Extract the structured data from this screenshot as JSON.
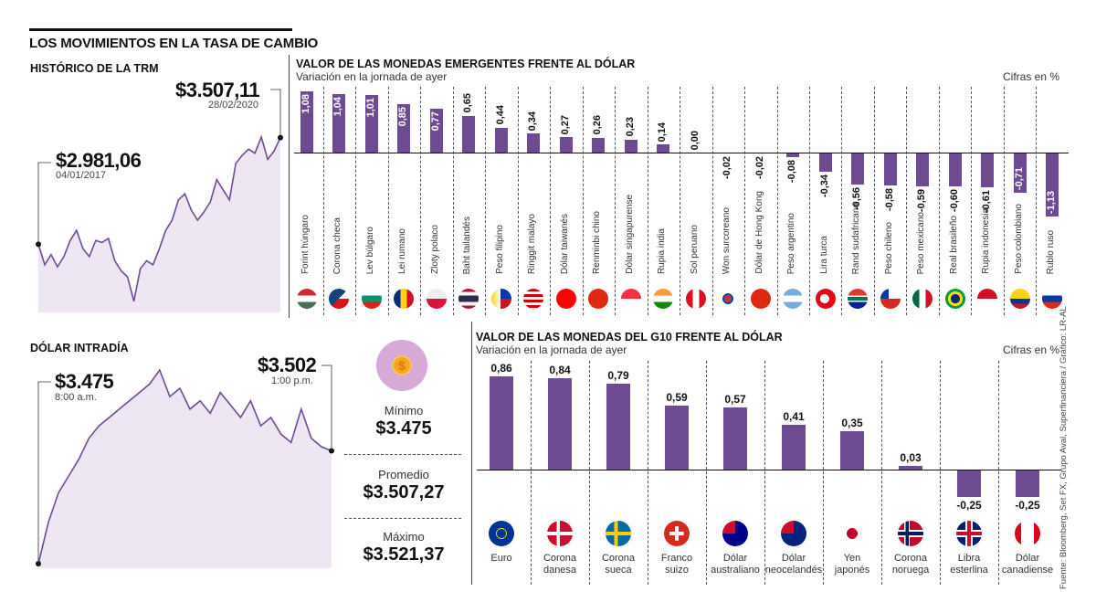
{
  "header": {
    "title": "LOS MOVIMIENTOS EN LA TASA DE CAMBIO"
  },
  "trm": {
    "title": "HISTÓRICO DE LA TRM",
    "start_value": "$2.981,06",
    "start_date": "04/01/2017",
    "end_value": "$3.507,11",
    "end_date": "28/02/2020"
  },
  "intraday": {
    "title": "DÓLAR INTRADÍA",
    "open_value": "$3.475",
    "open_time": "8:00 a.m.",
    "close_value": "$3.502",
    "close_time": "1:00 p.m.",
    "min_label": "Mínimo",
    "min_value": "$3.475",
    "avg_label": "Promedio",
    "avg_value": "$3.507,27",
    "max_label": "Máximo",
    "max_value": "$3.521,37",
    "icon": "dollar-coin-icon"
  },
  "emerging": {
    "title": "VALOR DE LAS MONEDAS EMERGENTES FRENTE AL DÓLAR",
    "subtitle": "Variación en la jornada de ayer",
    "unit": "Cifras en %"
  },
  "g10": {
    "title": "VALOR DE LAS MONEDAS DEL  G10 FRENTE AL DÓLAR",
    "subtitle": "Variación en la jornada de ayer",
    "unit": "Cifras en %"
  },
  "source": "Fuente: Bloomberg, Set FX, Grupo Aval, Superfinanciera / Gráfico: LR-AL",
  "colors": {
    "bar": "#6e4a92",
    "line": "#6e4a92",
    "fill": "#efe6f3"
  },
  "chart_data": [
    {
      "type": "area",
      "title": "HISTÓRICO DE LA TRM",
      "x_start": "04/01/2017",
      "x_end": "28/02/2020",
      "values": [
        2981,
        2880,
        2930,
        2870,
        2920,
        3000,
        3050,
        2960,
        2920,
        3000,
        2990,
        3010,
        2900,
        2850,
        2820,
        2700,
        2860,
        2900,
        2880,
        2960,
        3050,
        3100,
        3200,
        3230,
        3150,
        3100,
        3140,
        3190,
        3300,
        3250,
        3200,
        3380,
        3420,
        3450,
        3430,
        3510,
        3400,
        3440,
        3507.11
      ]
    },
    {
      "type": "area",
      "title": "DÓLAR INTRADÍA",
      "x_start": "8:00 a.m.",
      "x_end": "1:00 p.m.",
      "values": [
        3475,
        3485,
        3492,
        3496,
        3500,
        3505,
        3508,
        3510,
        3512,
        3514,
        3516,
        3518,
        3521.37,
        3515,
        3517,
        3512,
        3514,
        3511,
        3516,
        3513,
        3510,
        3514,
        3508,
        3510,
        3506,
        3504,
        3512,
        3505,
        3503,
        3502
      ]
    },
    {
      "type": "bar",
      "title": "VALOR DE LAS MONEDAS EMERGENTES FRENTE AL DÓLAR",
      "ylabel": "Cifras en %",
      "categories": [
        "Forint húngaro",
        "Corona checa",
        "Lev búlgaro",
        "Lei rumano",
        "Zloty polaco",
        "Baht tailandés",
        "Peso filipino",
        "Ringgit malayo",
        "Dólar taiwanés",
        "Renminbi chino",
        "Dólar singapurense",
        "Rupia india",
        "Sol peruano",
        "Won surcoreano",
        "Dólar de Hong Kong",
        "Peso argentino",
        "Lira turca",
        "Rand sudafricano",
        "Peso chileno",
        "Peso mexicano",
        "Real brasileño",
        "Rupia indonesia",
        "Peso colombiano",
        "Rublo ruso"
      ],
      "values": [
        1.08,
        1.04,
        1.01,
        0.85,
        0.77,
        0.65,
        0.44,
        0.34,
        0.27,
        0.26,
        0.23,
        0.14,
        0.0,
        -0.02,
        -0.02,
        -0.08,
        -0.34,
        -0.56,
        -0.58,
        -0.59,
        -0.6,
        -0.61,
        -0.71,
        -1.13
      ],
      "labels": [
        "1,08",
        "1,04",
        "1,01",
        "0,85",
        "0,77",
        "0,65",
        "0,44",
        "0,34",
        "0,27",
        "0,26",
        "0,23",
        "0,14",
        "0,00",
        "-0,02",
        "-0,02",
        "-0,08",
        "-0,34",
        "-0,56",
        "-0,58",
        "-0,59",
        "-0,60",
        "-0,61",
        "-0,71",
        "-1,13"
      ],
      "flags": [
        "hu",
        "cz",
        "bg",
        "ro",
        "pl",
        "th",
        "ph",
        "my",
        "tw",
        "cn",
        "sg",
        "in",
        "pe",
        "kr",
        "hk",
        "ar",
        "tr",
        "za",
        "cl",
        "mx",
        "br",
        "id",
        "co",
        "ru"
      ]
    },
    {
      "type": "bar",
      "title": "VALOR DE LAS MONEDAS DEL G10 FRENTE AL DÓLAR",
      "ylabel": "Cifras en %",
      "categories": [
        [
          "Euro"
        ],
        [
          "Corona",
          "danesa"
        ],
        [
          "Corona",
          "sueca"
        ],
        [
          "Franco",
          "suizo"
        ],
        [
          "Dólar",
          "australiano"
        ],
        [
          "Dólar",
          "neocelandés"
        ],
        [
          "Yen",
          "japonés"
        ],
        [
          "Corona",
          "noruega"
        ],
        [
          "Libra",
          "esterlina"
        ],
        [
          "Dólar",
          "canadiense"
        ]
      ],
      "values": [
        0.86,
        0.84,
        0.79,
        0.59,
        0.57,
        0.41,
        0.35,
        0.03,
        -0.25,
        -0.25
      ],
      "labels": [
        "0,86",
        "0,84",
        "0,79",
        "0,59",
        "0,57",
        "0,41",
        "0,35",
        "0,03",
        "-0,25",
        "-0,25"
      ],
      "flags": [
        "eu",
        "dk",
        "se",
        "ch",
        "au",
        "nz",
        "jp",
        "no",
        "gb",
        "ca"
      ]
    }
  ]
}
